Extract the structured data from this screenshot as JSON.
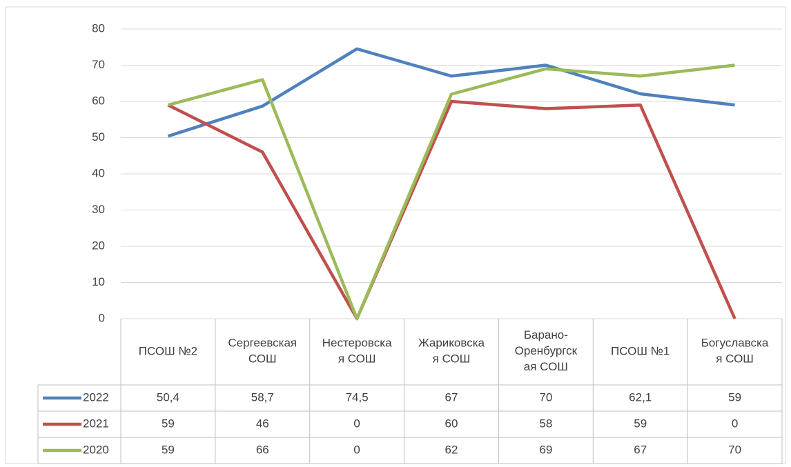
{
  "chart_data": {
    "type": "line",
    "categories": [
      "ПСОШ №2",
      "Сергеевская\nСОШ",
      "Нестеровска\nя СОШ",
      "Жариковска\nя СОШ",
      "Барано-\nОренбургск\nая СОШ",
      "ПСОШ №1",
      "Богуславска\nя СОШ"
    ],
    "series": [
      {
        "name": "2022",
        "color": "#4f81bd",
        "values": [
          50.4,
          58.7,
          74.5,
          67,
          70,
          62.1,
          59
        ],
        "value_labels": [
          "50,4",
          "58,7",
          "74,5",
          "67",
          "70",
          "62,1",
          "59"
        ]
      },
      {
        "name": "2021",
        "color": "#c0504d",
        "values": [
          59,
          46,
          0,
          60,
          58,
          59,
          0
        ]
      },
      {
        "name": "2020",
        "color": "#9bbb59",
        "values": [
          59,
          66,
          0,
          62,
          69,
          67,
          70
        ]
      }
    ],
    "ylim": [
      0,
      80
    ],
    "yticks": [
      0,
      10,
      20,
      30,
      40,
      50,
      60,
      70,
      80
    ],
    "grid": true,
    "data_table": true
  }
}
